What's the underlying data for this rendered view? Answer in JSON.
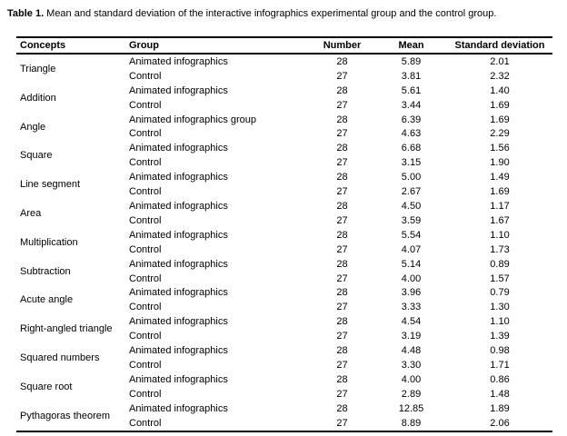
{
  "caption": {
    "label": "Table 1.",
    "text": "Mean and standard deviation of the interactive infographics experimental group and the control group."
  },
  "table": {
    "headers": [
      "Concepts",
      "Group",
      "Number",
      "Mean",
      "Standard deviation"
    ],
    "rows": [
      {
        "concept": "Triangle",
        "groups": [
          {
            "group": "Animated infographics",
            "number": "28",
            "mean": "5.89",
            "sd": "2.01"
          },
          {
            "group": "Control",
            "number": "27",
            "mean": "3.81",
            "sd": "2.32"
          }
        ]
      },
      {
        "concept": "Addition",
        "groups": [
          {
            "group": "Animated infographics",
            "number": "28",
            "mean": "5.61",
            "sd": "1.40"
          },
          {
            "group": "Control",
            "number": "27",
            "mean": "3.44",
            "sd": "1.69"
          }
        ]
      },
      {
        "concept": "Angle",
        "groups": [
          {
            "group": "Animated infographics group",
            "number": "28",
            "mean": "6.39",
            "sd": "1.69"
          },
          {
            "group": "Control",
            "number": "27",
            "mean": "4.63",
            "sd": "2.29"
          }
        ]
      },
      {
        "concept": "Square",
        "groups": [
          {
            "group": "Animated infographics",
            "number": "28",
            "mean": "6.68",
            "sd": "1.56"
          },
          {
            "group": "Control",
            "number": "27",
            "mean": "3.15",
            "sd": "1.90"
          }
        ]
      },
      {
        "concept": "Line segment",
        "groups": [
          {
            "group": "Animated infographics",
            "number": "28",
            "mean": "5.00",
            "sd": "1.49"
          },
          {
            "group": "Control",
            "number": "27",
            "mean": "2.67",
            "sd": "1.69"
          }
        ]
      },
      {
        "concept": "Area",
        "groups": [
          {
            "group": "Animated infographics",
            "number": "28",
            "mean": "4.50",
            "sd": "1.17"
          },
          {
            "group": "Control",
            "number": "27",
            "mean": "3.59",
            "sd": "1.67"
          }
        ]
      },
      {
        "concept": "Multiplication",
        "groups": [
          {
            "group": "Animated infographics",
            "number": "28",
            "mean": "5.54",
            "sd": "1.10"
          },
          {
            "group": "Control",
            "number": "27",
            "mean": "4.07",
            "sd": "1.73"
          }
        ]
      },
      {
        "concept": "Subtraction",
        "groups": [
          {
            "group": "Animated infographics",
            "number": "28",
            "mean": "5.14",
            "sd": "0.89"
          },
          {
            "group": "Control",
            "number": "27",
            "mean": "4.00",
            "sd": "1.57"
          }
        ]
      },
      {
        "concept": "Acute angle",
        "groups": [
          {
            "group": "Animated infographics",
            "number": "28",
            "mean": "3.96",
            "sd": "0.79"
          },
          {
            "group": "Control",
            "number": "27",
            "mean": "3.33",
            "sd": "1.30"
          }
        ]
      },
      {
        "concept": "Right-angled triangle",
        "groups": [
          {
            "group": "Animated infographics",
            "number": "28",
            "mean": "4.54",
            "sd": "1.10"
          },
          {
            "group": "Control",
            "number": "27",
            "mean": "3.19",
            "sd": "1.39"
          }
        ]
      },
      {
        "concept": "Squared numbers",
        "groups": [
          {
            "group": "Animated infographics",
            "number": "28",
            "mean": "4.48",
            "sd": "0.98"
          },
          {
            "group": "Control",
            "number": "27",
            "mean": "3.30",
            "sd": "1.71"
          }
        ]
      },
      {
        "concept": "Square root",
        "groups": [
          {
            "group": "Animated infographics",
            "number": "28",
            "mean": "4.00",
            "sd": "0.86"
          },
          {
            "group": "Control",
            "number": "27",
            "mean": "2.89",
            "sd": "1.48"
          }
        ]
      },
      {
        "concept": "Pythagoras theorem",
        "groups": [
          {
            "group": "Animated infographics",
            "number": "28",
            "mean": "12.85",
            "sd": "1.89"
          },
          {
            "group": "Control",
            "number": "27",
            "mean": "8.89",
            "sd": "2.06"
          }
        ]
      }
    ]
  }
}
